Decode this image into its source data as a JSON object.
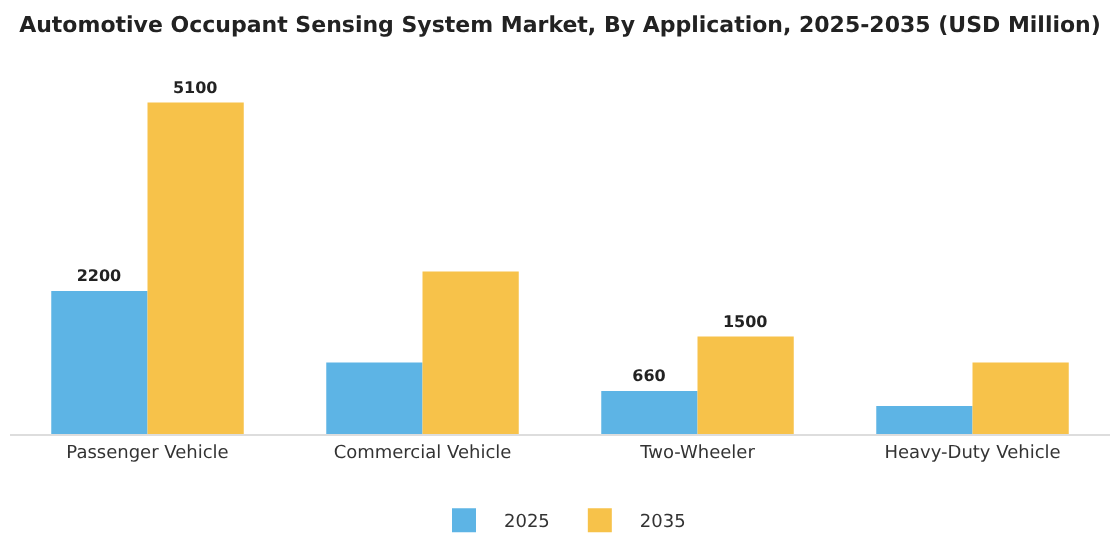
{
  "chart_data": {
    "type": "bar",
    "title": "Automotive Occupant Sensing System Market, By Application, 2025-2035 (USD Million)",
    "categories": [
      "Passenger Vehicle",
      "Commercial Vehicle",
      "Two-Wheeler",
      "Heavy-Duty Vehicle"
    ],
    "series": [
      {
        "name": "2025",
        "color": "#5db4e5",
        "values": [
          2200,
          1100,
          660,
          430
        ],
        "value_labels": [
          "2200",
          null,
          "660",
          null
        ]
      },
      {
        "name": "2035",
        "color": "#f7c24a",
        "values": [
          5100,
          2500,
          1500,
          1100
        ],
        "value_labels": [
          "5100",
          null,
          "1500",
          null
        ]
      }
    ],
    "legend": "bottom"
  }
}
